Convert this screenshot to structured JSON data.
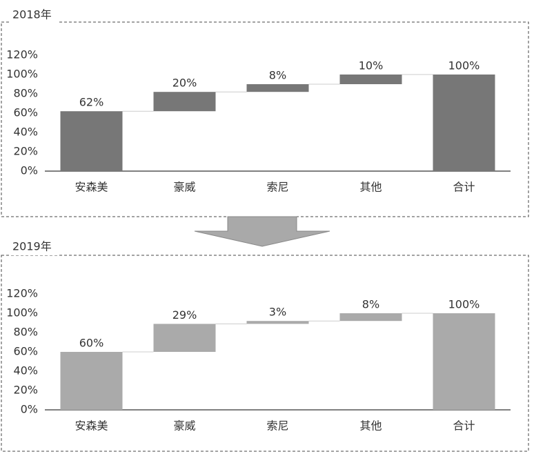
{
  "chart_data": [
    {
      "type": "waterfall",
      "title": "2018年",
      "categories": [
        "安森美",
        "豪威",
        "索尼",
        "其他",
        "合计"
      ],
      "values": [
        62,
        20,
        8,
        10,
        100
      ],
      "value_labels": [
        "62%",
        "20%",
        "8%",
        "10%",
        "100%"
      ],
      "color": "#777777",
      "ylim": [
        0,
        120
      ],
      "yticks": [
        {
          "value": 0,
          "label": "0%"
        },
        {
          "value": 20,
          "label": "20%"
        },
        {
          "value": 40,
          "label": "40%"
        },
        {
          "value": 60,
          "label": "60%"
        },
        {
          "value": 80,
          "label": "80%"
        },
        {
          "value": 100,
          "label": "100%"
        },
        {
          "value": 120,
          "label": "120%"
        }
      ]
    },
    {
      "type": "waterfall",
      "title": "2019年",
      "categories": [
        "安森美",
        "豪威",
        "索尼",
        "其他",
        "合计"
      ],
      "values": [
        60,
        29,
        3,
        8,
        100
      ],
      "value_labels": [
        "60%",
        "29%",
        "3%",
        "8%",
        "100%"
      ],
      "color": "#aaaaaa",
      "ylim": [
        0,
        120
      ],
      "yticks": [
        {
          "value": 0,
          "label": "0%"
        },
        {
          "value": 20,
          "label": "20%"
        },
        {
          "value": 40,
          "label": "40%"
        },
        {
          "value": 60,
          "label": "60%"
        },
        {
          "value": 80,
          "label": "80%"
        },
        {
          "value": 100,
          "label": "100%"
        },
        {
          "value": 120,
          "label": "120%"
        }
      ]
    }
  ]
}
